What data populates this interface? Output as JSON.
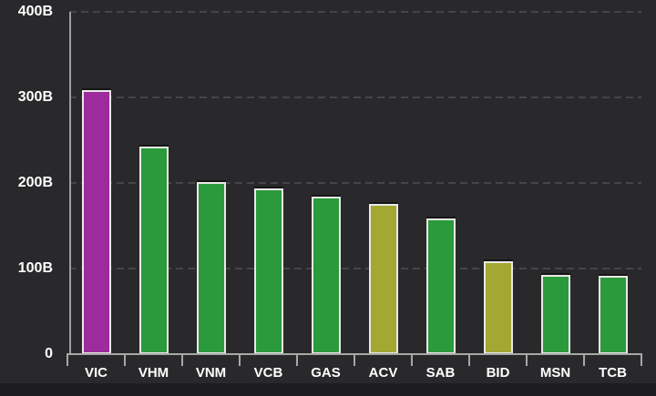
{
  "chart_data": {
    "type": "bar",
    "title": "",
    "categories": [
      "VIC",
      "VHM",
      "VNM",
      "VCB",
      "GAS",
      "ACV",
      "SAB",
      "BID",
      "MSN",
      "TCB"
    ],
    "values": [
      308,
      243,
      201,
      194,
      184,
      176,
      158,
      109,
      93,
      91
    ],
    "unit": "B",
    "xlabel": "",
    "ylabel": "",
    "ylim": [
      0,
      400
    ],
    "y_ticks": [
      {
        "value": 400,
        "label": "400B"
      },
      {
        "value": 300,
        "label": "300B"
      },
      {
        "value": 200,
        "label": "200B"
      },
      {
        "value": 100,
        "label": "100B"
      },
      {
        "value": 0,
        "label": "0"
      }
    ],
    "grid": "horizontal-dashed",
    "legend": "none",
    "bar_colors": [
      "#9c2b9c",
      "#2a9a3c",
      "#2a9a3c",
      "#2a9a3c",
      "#2a9a3c",
      "#a4a832",
      "#2a9a3c",
      "#a4a832",
      "#2a9a3c",
      "#2a9a3c"
    ],
    "colors": {
      "background": "#29292b",
      "bar_green": "#2a9a3c",
      "bar_purple": "#9c2b9c",
      "bar_olive": "#a4a832",
      "bar_border": "#e9e9e6",
      "axis": "#a8a8a8",
      "gridline": "#454548",
      "label_text": "#ffffff",
      "footer_strip": "#1d1d1f"
    }
  }
}
